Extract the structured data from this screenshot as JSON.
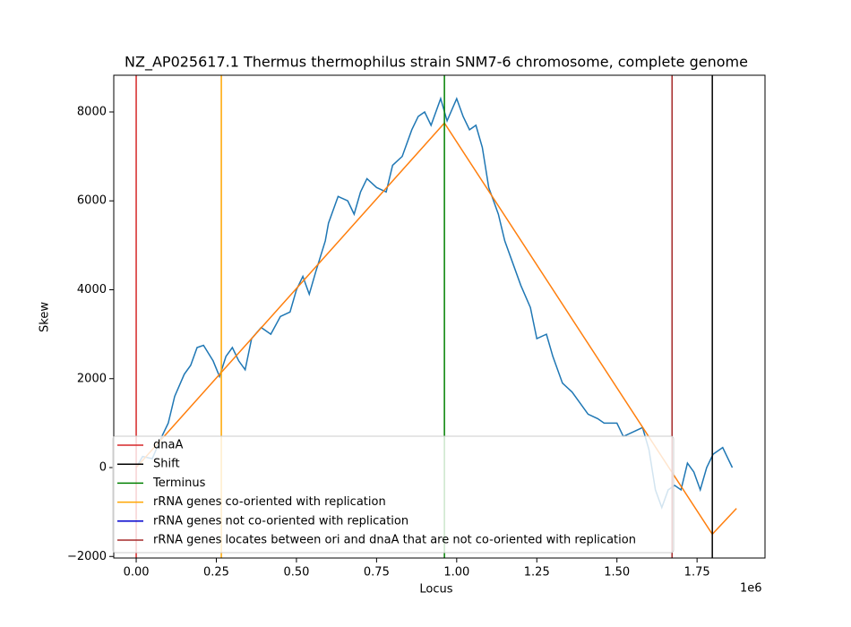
{
  "chart_data": {
    "type": "line",
    "title": "NZ_AP025617.1 Thermus thermophilus strain SNM7-6 chromosome, complete genome",
    "xlabel": "Locus",
    "ylabel": "Skew",
    "x_offset_label": "1e6",
    "xlim": [
      -70000,
      1962000
    ],
    "ylim": [
      -2035,
      8826
    ],
    "xticks": [
      {
        "value": 0,
        "label": "0.00"
      },
      {
        "value": 250000,
        "label": "0.25"
      },
      {
        "value": 500000,
        "label": "0.50"
      },
      {
        "value": 750000,
        "label": "0.75"
      },
      {
        "value": 1000000,
        "label": "1.00"
      },
      {
        "value": 1250000,
        "label": "1.25"
      },
      {
        "value": 1500000,
        "label": "1.50"
      },
      {
        "value": 1750000,
        "label": "1.75"
      }
    ],
    "yticks": [
      {
        "value": -2000,
        "label": "−2000"
      },
      0,
      2000,
      4000,
      6000,
      8000
    ],
    "series": [
      {
        "color": "#1f77b4",
        "x": [
          0,
          20000,
          50000,
          80000,
          100000,
          120000,
          150000,
          170000,
          190000,
          210000,
          240000,
          260000,
          280000,
          300000,
          320000,
          340000,
          360000,
          390000,
          420000,
          450000,
          480000,
          500000,
          520000,
          540000,
          560000,
          590000,
          600000,
          630000,
          660000,
          680000,
          700000,
          720000,
          750000,
          780000,
          800000,
          830000,
          860000,
          880000,
          900000,
          920000,
          950000,
          970000,
          1000000,
          1020000,
          1040000,
          1060000,
          1080000,
          1100000,
          1130000,
          1150000,
          1180000,
          1200000,
          1230000,
          1250000,
          1280000,
          1300000,
          1330000,
          1360000,
          1380000,
          1410000,
          1440000,
          1460000,
          1500000,
          1520000,
          1550000,
          1580000,
          1600000,
          1620000,
          1640000,
          1660000,
          1680000,
          1700000,
          1720000,
          1740000,
          1760000,
          1780000,
          1800000,
          1830000,
          1860000
        ],
        "values": [
          0,
          250,
          200,
          700,
          1000,
          1600,
          2100,
          2300,
          2700,
          2750,
          2400,
          2050,
          2500,
          2700,
          2400,
          2200,
          2900,
          3150,
          3000,
          3400,
          3500,
          4000,
          4300,
          3900,
          4400,
          5100,
          5500,
          6100,
          6000,
          5700,
          6200,
          6500,
          6300,
          6200,
          6800,
          7000,
          7600,
          7900,
          8000,
          7700,
          8300,
          7800,
          8300,
          7900,
          7600,
          7700,
          7200,
          6300,
          5700,
          5100,
          4500,
          4100,
          3600,
          2900,
          3000,
          2500,
          1900,
          1700,
          1500,
          1200,
          1100,
          1000,
          1000,
          700,
          800,
          900,
          400,
          -500,
          -900,
          -500,
          -400,
          -500,
          100,
          -100,
          -500,
          0,
          300,
          450,
          0
        ]
      },
      {
        "color": "#ff7f0e",
        "x": [
          0,
          961700,
          1797600,
          1873000
        ],
        "values": [
          0,
          7750,
          -1500,
          -920
        ]
      }
    ],
    "markers": [
      {
        "name": "dnaA",
        "color": "#d62728",
        "x": 0
      },
      {
        "name": "Shift",
        "color": "#000000",
        "x": 1797600
      },
      {
        "name": "Terminus",
        "color": "#008000",
        "x": 961700
      },
      {
        "name": "rRNA genes co-oriented with replication",
        "color": "#ffa500",
        "x": 265600
      },
      {
        "name": "rRNA genes not co-oriented with replication",
        "color": "#0000cd"
      },
      {
        "name": "rRNA genes locates between ori and dnaA that are not co-oriented with replication",
        "color": "#a52a2a",
        "x": 1672000
      }
    ]
  }
}
